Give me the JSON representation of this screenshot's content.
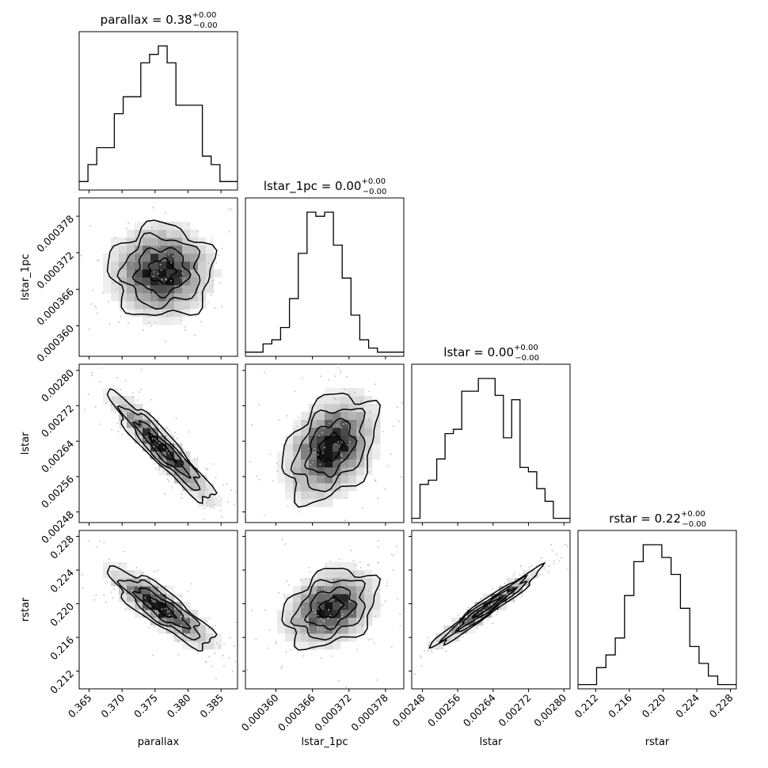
{
  "chart_data": {
    "type": "corner",
    "parameters": [
      {
        "name": "parallax",
        "axis_label": "parallax",
        "title_main": "parallax = 0.38",
        "title_sup": "+0.00",
        "title_sub": "−0.00",
        "range": [
          0.3635,
          0.3875
        ],
        "ticks": [
          0.365,
          0.37,
          0.375,
          0.38,
          0.385
        ],
        "tick_labels": [
          "0.365",
          "0.370",
          "0.375",
          "0.380",
          "0.385"
        ]
      },
      {
        "name": "lstar_1pc",
        "axis_label": "lstar_1pc",
        "title_main": "lstar_1pc = 0.00",
        "title_sup": "+0.00",
        "title_sub": "−0.00",
        "range": [
          0.000355,
          0.000381
        ],
        "ticks": [
          0.00036,
          0.000366,
          0.000372,
          0.000378
        ],
        "tick_labels": [
          "0.000360",
          "0.000366",
          "0.000372",
          "0.000378"
        ]
      },
      {
        "name": "lstar",
        "axis_label": "lstar",
        "title_main": "lstar = 0.00",
        "title_sup": "+0.00",
        "title_sub": "−0.00",
        "range": [
          0.002456,
          0.002814
        ],
        "ticks": [
          0.00248,
          0.00256,
          0.00264,
          0.00272,
          0.0028
        ],
        "tick_labels": [
          "0.00248",
          "0.00256",
          "0.00264",
          "0.00272",
          "0.00280"
        ]
      },
      {
        "name": "rstar",
        "axis_label": "rstar",
        "title_main": "rstar = 0.22",
        "title_sup": "+0.00",
        "title_sub": "−0.00",
        "range": [
          0.2099,
          0.2287
        ],
        "ticks": [
          0.212,
          0.216,
          0.22,
          0.224,
          0.228
        ],
        "tick_labels": [
          "0.212",
          "0.216",
          "0.220",
          "0.224",
          "0.228"
        ]
      }
    ],
    "histograms": [
      {
        "param": "parallax",
        "counts": [
          1,
          3,
          5,
          5,
          9,
          11,
          11,
          15,
          16,
          17,
          15,
          10,
          10,
          10,
          4,
          3,
          1,
          1
        ]
      },
      {
        "param": "lstar_1pc",
        "counts": [
          1,
          1,
          3,
          4,
          7,
          14,
          25,
          35,
          34,
          35,
          27,
          19,
          10,
          4,
          2,
          1,
          1,
          1
        ]
      },
      {
        "param": "lstar",
        "counts": [
          1,
          9,
          10,
          15,
          21,
          22,
          31,
          31,
          34,
          34,
          30,
          20,
          29,
          13,
          12,
          8,
          5,
          1,
          1
        ]
      },
      {
        "param": "rstar",
        "counts": [
          1,
          1,
          5,
          8,
          12,
          22,
          30,
          34,
          34,
          31,
          27,
          19,
          10,
          6,
          3,
          1,
          1
        ]
      }
    ],
    "pairs": [
      {
        "x": "parallax",
        "y": "lstar_1pc",
        "correlation": 0.0
      },
      {
        "x": "parallax",
        "y": "lstar",
        "correlation": -0.93
      },
      {
        "x": "parallax",
        "y": "rstar",
        "correlation": -0.85
      },
      {
        "x": "lstar_1pc",
        "y": "lstar",
        "correlation": 0.35
      },
      {
        "x": "lstar_1pc",
        "y": "rstar",
        "correlation": 0.3
      },
      {
        "x": "lstar",
        "y": "rstar",
        "correlation": 0.97
      }
    ],
    "centers": [
      0.376,
      0.000369,
      0.002625,
      0.2195
    ],
    "sigmas": [
      0.0037,
      3.6e-06,
      5.8e-05,
      0.0022
    ],
    "contour_levels_sigma": [
      0.5,
      1.0,
      1.5,
      2.0
    ]
  }
}
